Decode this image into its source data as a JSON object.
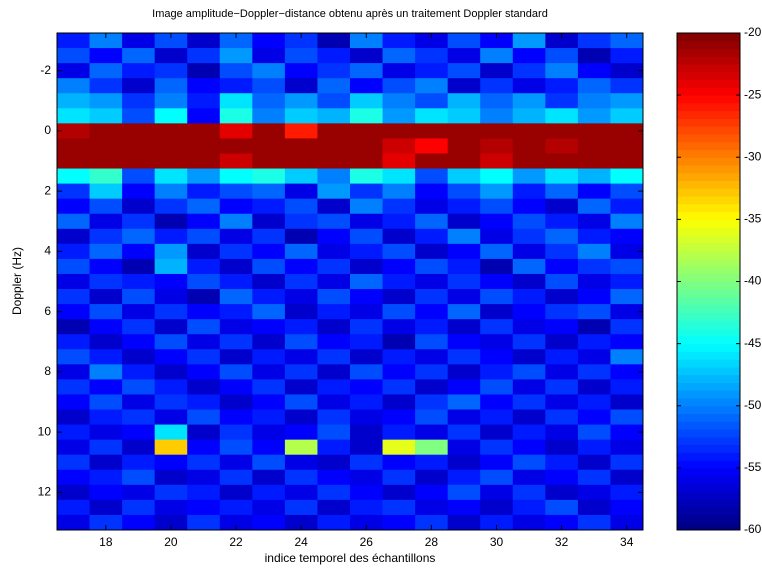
{
  "chart_data": {
    "type": "heatmap",
    "title": "Image amplitude−Doppler−distance obtenu après un traitement Doppler standard",
    "x_label": "indice temporel des échantillons",
    "y_label": "Doppler (Hz)",
    "x": [
      17,
      18,
      19,
      20,
      21,
      22,
      23,
      24,
      25,
      26,
      27,
      28,
      29,
      30,
      31,
      32,
      33,
      34
    ],
    "y": [
      -3,
      -2.5,
      -2,
      -1.5,
      -1,
      -0.5,
      0,
      0.5,
      1,
      1.5,
      2,
      2.5,
      3,
      3.5,
      4,
      4.5,
      5,
      5.5,
      6,
      6.5,
      7,
      7.5,
      8,
      8.5,
      9,
      9.5,
      10,
      10.5,
      11,
      11.5,
      12,
      12.5,
      13
    ],
    "xlim": [
      16.5,
      34.5
    ],
    "ylim": [
      -3.25,
      13.25
    ],
    "y_reversed": true,
    "xticks": [
      18,
      20,
      22,
      24,
      26,
      28,
      30,
      32,
      34
    ],
    "yticks": [
      -2,
      0,
      2,
      4,
      6,
      8,
      10,
      12
    ],
    "clim": [
      -60,
      -20
    ],
    "cticks": [
      -20,
      -25,
      -30,
      -35,
      -40,
      -45,
      -50,
      -55,
      -60
    ],
    "colormap": "jet",
    "z": [
      [
        -54,
        -50,
        -56,
        -52,
        -57,
        -51,
        -55,
        -53,
        -58,
        -50,
        -54,
        -56,
        -52,
        -55,
        -49,
        -57,
        -53,
        -51
      ],
      [
        -52,
        -55,
        -51,
        -57,
        -53,
        -49,
        -56,
        -52,
        -54,
        -57,
        -51,
        -53,
        -56,
        -50,
        -55,
        -52,
        -58,
        -54
      ],
      [
        -56,
        -51,
        -54,
        -53,
        -58,
        -52,
        -50,
        -55,
        -53,
        -51,
        -56,
        -54,
        -52,
        -57,
        -53,
        -50,
        -55,
        -57
      ],
      [
        -50,
        -53,
        -57,
        -51,
        -55,
        -54,
        -52,
        -57,
        -51,
        -55,
        -52,
        -50,
        -57,
        -53,
        -56,
        -54,
        -51,
        -53
      ],
      [
        -48,
        -49,
        -53,
        -50,
        -54,
        -46,
        -51,
        -49,
        -52,
        -47,
        -50,
        -52,
        -48,
        -51,
        -49,
        -53,
        -50,
        -49
      ],
      [
        -46,
        -47,
        -52,
        -45,
        -55,
        -44,
        -50,
        -47,
        -48,
        -44,
        -49,
        -46,
        -47,
        -50,
        -48,
        -46,
        -49,
        -47
      ],
      [
        -22,
        -21,
        -21,
        -21,
        -21,
        -24,
        -21,
        -26,
        -21,
        -21,
        -21,
        -21,
        -21,
        -21,
        -21,
        -21,
        -21,
        -21
      ],
      [
        -21,
        -21,
        -21,
        -21,
        -21,
        -21,
        -21,
        -21,
        -21,
        -21,
        -23,
        -25,
        -21,
        -22,
        -21,
        -22,
        -21,
        -21
      ],
      [
        -21,
        -21,
        -21,
        -21,
        -21,
        -23,
        -21,
        -21,
        -21,
        -21,
        -24,
        -21,
        -21,
        -23,
        -21,
        -21,
        -21,
        -21
      ],
      [
        -45,
        -43,
        -52,
        -46,
        -49,
        -45,
        -44,
        -47,
        -50,
        -44,
        -46,
        -52,
        -47,
        -45,
        -49,
        -46,
        -48,
        -45
      ],
      [
        -53,
        -47,
        -55,
        -50,
        -54,
        -52,
        -51,
        -56,
        -49,
        -53,
        -50,
        -55,
        -52,
        -49,
        -54,
        -51,
        -55,
        -52
      ],
      [
        -55,
        -52,
        -57,
        -53,
        -51,
        -55,
        -54,
        -52,
        -57,
        -50,
        -53,
        -56,
        -54,
        -52,
        -55,
        -57,
        -51,
        -54
      ],
      [
        -51,
        -56,
        -53,
        -58,
        -55,
        -50,
        -57,
        -53,
        -52,
        -56,
        -54,
        -51,
        -57,
        -55,
        -52,
        -54,
        -56,
        -50
      ],
      [
        -57,
        -53,
        -51,
        -54,
        -52,
        -56,
        -53,
        -58,
        -55,
        -52,
        -57,
        -54,
        -50,
        -56,
        -53,
        -51,
        -54,
        -55
      ],
      [
        -54,
        -51,
        -55,
        -49,
        -57,
        -53,
        -55,
        -51,
        -56,
        -54,
        -52,
        -57,
        -55,
        -51,
        -56,
        -53,
        -50,
        -56
      ],
      [
        -52,
        -55,
        -58,
        -48,
        -54,
        -57,
        -52,
        -55,
        -53,
        -57,
        -55,
        -52,
        -54,
        -58,
        -51,
        -55,
        -53,
        -52
      ],
      [
        -56,
        -53,
        -54,
        -55,
        -52,
        -54,
        -57,
        -53,
        -56,
        -51,
        -54,
        -56,
        -53,
        -55,
        -57,
        -52,
        -56,
        -54
      ],
      [
        -53,
        -57,
        -52,
        -56,
        -58,
        -51,
        -54,
        -56,
        -52,
        -55,
        -57,
        -53,
        -56,
        -52,
        -54,
        -57,
        -55,
        -51
      ],
      [
        -55,
        -52,
        -56,
        -53,
        -55,
        -54,
        -51,
        -57,
        -54,
        -56,
        -52,
        -55,
        -51,
        -57,
        -55,
        -53,
        -52,
        -56
      ],
      [
        -58,
        -55,
        -53,
        -57,
        -52,
        -56,
        -55,
        -54,
        -57,
        -53,
        -56,
        -54,
        -57,
        -53,
        -56,
        -55,
        -58,
        -53
      ],
      [
        -54,
        -57,
        -55,
        -52,
        -56,
        -53,
        -57,
        -52,
        -55,
        -54,
        -58,
        -52,
        -55,
        -56,
        -53,
        -57,
        -54,
        -55
      ],
      [
        -52,
        -54,
        -57,
        -55,
        -53,
        -57,
        -54,
        -56,
        -53,
        -57,
        -54,
        -56,
        -53,
        -55,
        -57,
        -54,
        -56,
        -50
      ],
      [
        -56,
        -50,
        -54,
        -57,
        -55,
        -52,
        -56,
        -53,
        -57,
        -52,
        -55,
        -53,
        -57,
        -54,
        -52,
        -56,
        -53,
        -55
      ],
      [
        -53,
        -55,
        -52,
        -54,
        -57,
        -55,
        -53,
        -57,
        -54,
        -55,
        -53,
        -57,
        -55,
        -52,
        -56,
        -53,
        -57,
        -54
      ],
      [
        -55,
        -52,
        -56,
        -53,
        -54,
        -57,
        -55,
        -52,
        -56,
        -54,
        -57,
        -53,
        -51,
        -55,
        -53,
        -56,
        -54,
        -57
      ],
      [
        -57,
        -54,
        -53,
        -56,
        -52,
        -55,
        -54,
        -57,
        -53,
        -56,
        -55,
        -52,
        -56,
        -54,
        -57,
        -53,
        -55,
        -52
      ],
      [
        -54,
        -56,
        -55,
        -46,
        -57,
        -53,
        -56,
        -55,
        -52,
        -57,
        -54,
        -56,
        -53,
        -57,
        -54,
        -56,
        -52,
        -55
      ],
      [
        -56,
        -53,
        -57,
        -33,
        -55,
        -52,
        -55,
        -38,
        -54,
        -57,
        -36,
        -40,
        -56,
        -53,
        -55,
        -57,
        -54,
        -56
      ],
      [
        -53,
        -57,
        -54,
        -55,
        -53,
        -56,
        -52,
        -56,
        -57,
        -53,
        -55,
        -54,
        -57,
        -55,
        -52,
        -54,
        -57,
        -53
      ],
      [
        -55,
        -54,
        -52,
        -57,
        -56,
        -53,
        -57,
        -53,
        -55,
        -56,
        -53,
        -57,
        -54,
        -52,
        -56,
        -55,
        -53,
        -57
      ],
      [
        -57,
        -55,
        -56,
        -53,
        -54,
        -57,
        -54,
        -56,
        -53,
        -55,
        -57,
        -55,
        -52,
        -56,
        -53,
        -57,
        -56,
        -54
      ],
      [
        -54,
        -57,
        -53,
        -56,
        -55,
        -54,
        -56,
        -53,
        -57,
        -54,
        -53,
        -56,
        -55,
        -57,
        -54,
        -52,
        -57,
        -55
      ],
      [
        -56,
        -53,
        -55,
        -57,
        -53,
        -56,
        -55,
        -57,
        -54,
        -56,
        -55,
        -53,
        -57,
        -54,
        -56,
        -55,
        -53,
        -56
      ]
    ]
  }
}
